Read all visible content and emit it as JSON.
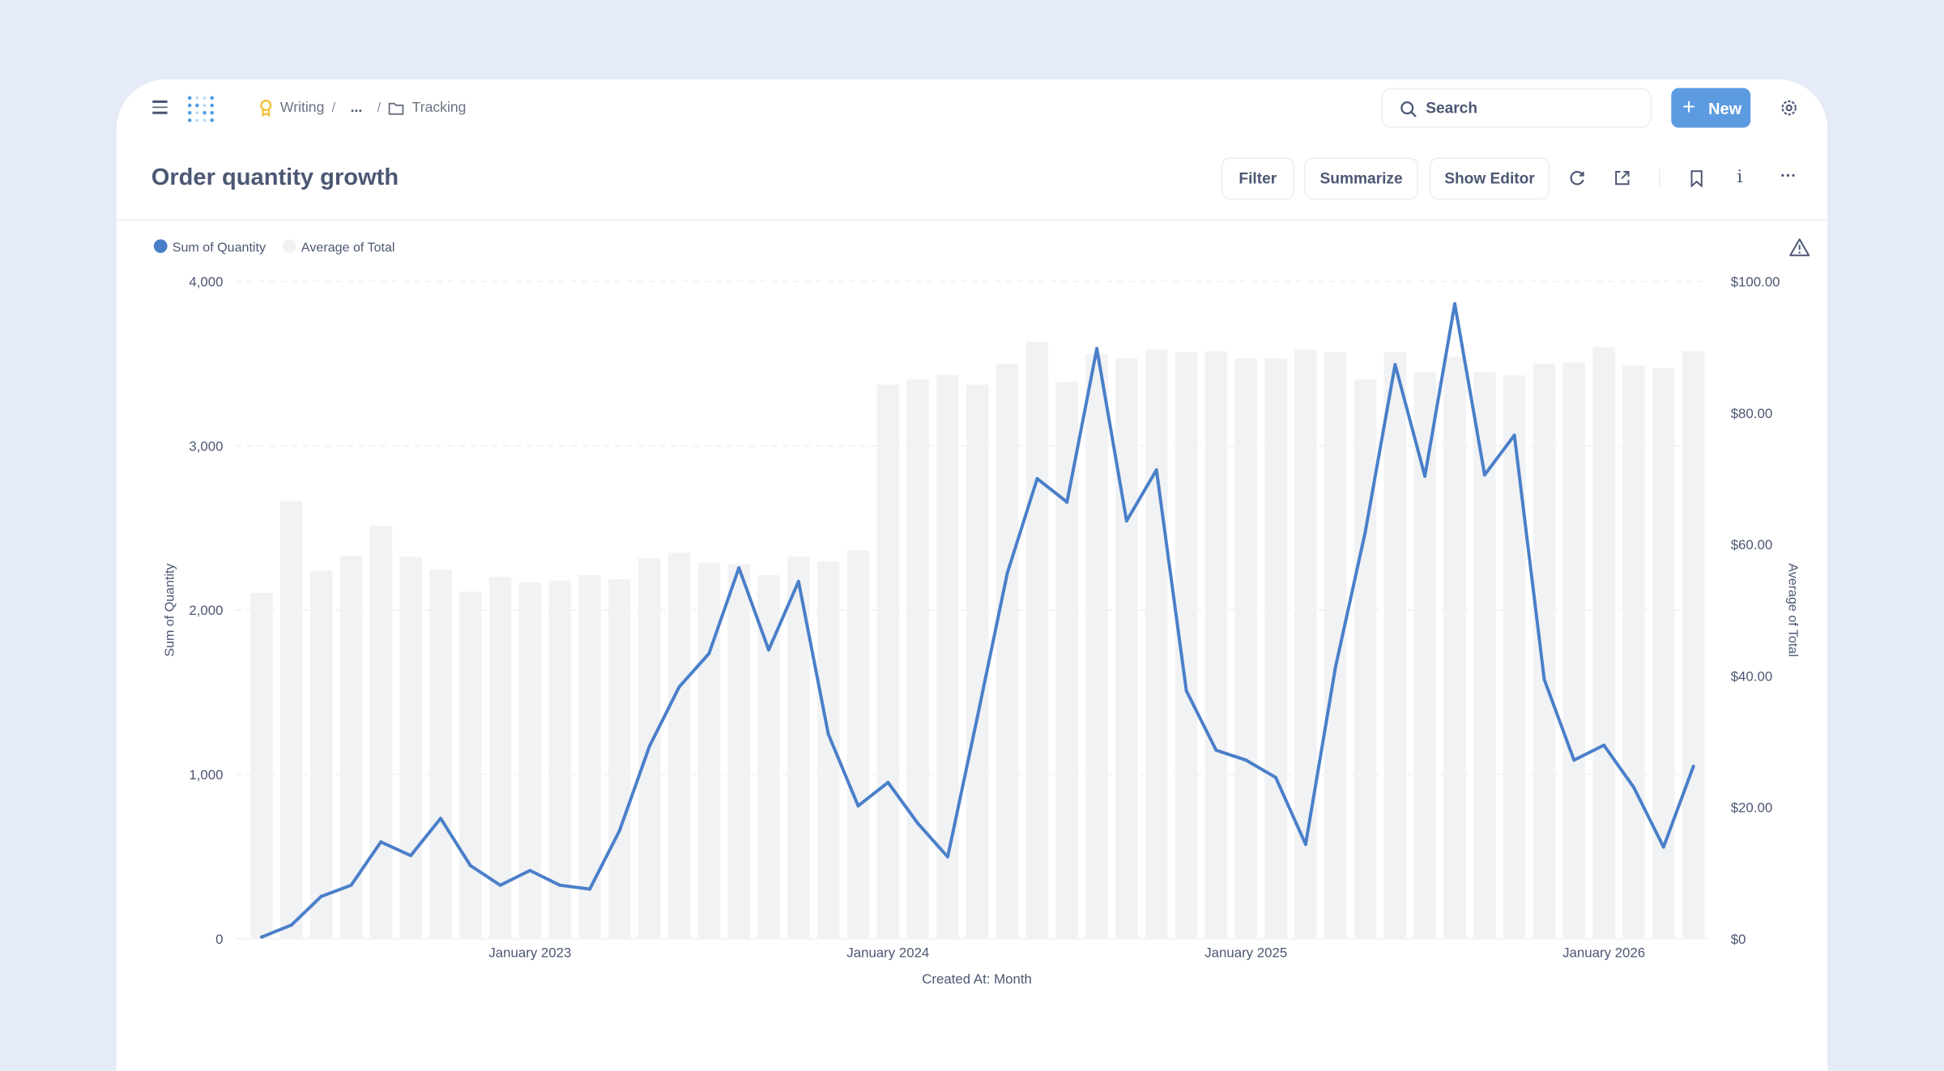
{
  "header": {
    "breadcrumb": [
      "Writing",
      "...",
      "Tracking"
    ],
    "search_placeholder": "Search",
    "new_label": "New"
  },
  "question": {
    "title": "Order quantity growth",
    "filter_label": "Filter",
    "summarize_label": "Summarize",
    "show_editor_label": "Show Editor"
  },
  "colors": {
    "line": "#4a7fc9",
    "bar": "#f1f2f4",
    "accent": "#5d9be0"
  },
  "chart_data": {
    "type": "bar+line",
    "x_start": "April 2022",
    "x_end": "April 2026",
    "xlabel": "Created At: Month",
    "x_ticks": [
      "January 2023",
      "January 2024",
      "January 2025",
      "January 2026"
    ],
    "legend": [
      "Sum of Quantity",
      "Average of Total"
    ],
    "legend_position": "top-left",
    "y_left": {
      "label": "Sum of Quantity",
      "range": [
        0,
        4000
      ],
      "ticks": [
        "0",
        "1,000",
        "2,000",
        "3,000",
        "4,000"
      ]
    },
    "y_right": {
      "label": "Average of Total",
      "range": [
        0,
        100
      ],
      "ticks": [
        "$0",
        "$20.00",
        "$40.00",
        "$60.00",
        "$80.00",
        "$100.00"
      ]
    },
    "series": [
      {
        "name": "Sum of Quantity",
        "type": "line",
        "axis": "left",
        "values": [
          10,
          83,
          257,
          325,
          589,
          506,
          732,
          445,
          325,
          415,
          325,
          302,
          657,
          1170,
          1532,
          1736,
          2257,
          1758,
          2174,
          1245,
          808,
          951,
          702,
          498,
          1351,
          2226,
          2800,
          2657,
          3592,
          2543,
          2853,
          1509,
          1147,
          1087,
          981,
          574,
          1653,
          2475,
          3494,
          2815,
          3864,
          2823,
          3064,
          1577,
          1087,
          1177,
          921,
          558,
          1049
        ]
      },
      {
        "name": "Average of Total",
        "type": "bar",
        "axis": "right",
        "values": [
          52.6,
          66.6,
          56,
          58.3,
          62.8,
          58.1,
          56.2,
          52.8,
          55.1,
          54.2,
          54.5,
          55.3,
          54.7,
          57.9,
          58.7,
          57.2,
          57,
          55.3,
          58.1,
          57.4,
          59.1,
          84.3,
          85.1,
          85.8,
          84.3,
          87.5,
          90.8,
          84.7,
          88.9,
          88.3,
          89.6,
          89.2,
          89.4,
          88.3,
          88.3,
          89.6,
          89.2,
          85.1,
          89.2,
          86.2,
          88.5,
          86.2,
          85.7,
          87.5,
          87.7,
          90,
          87.2,
          86.8,
          89.4
        ]
      }
    ]
  }
}
